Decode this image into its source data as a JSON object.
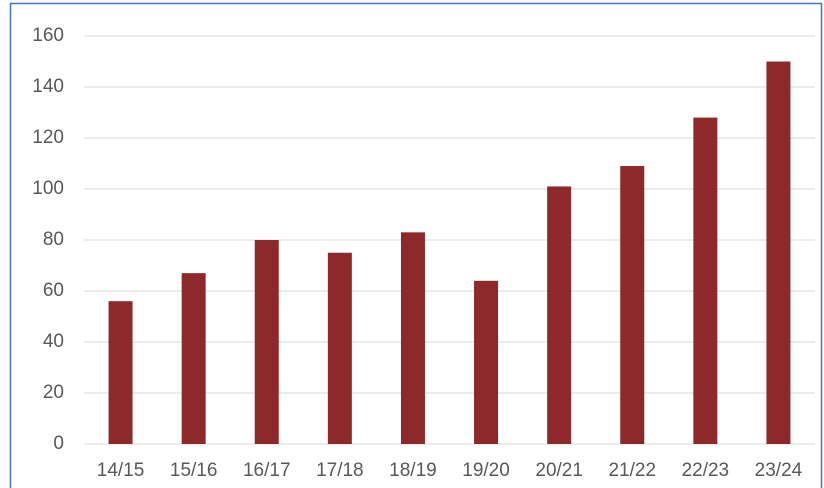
{
  "chart_data": {
    "type": "bar",
    "categories": [
      "14/15",
      "15/16",
      "16/17",
      "17/18",
      "18/19",
      "19/20",
      "20/21",
      "21/22",
      "22/23",
      "23/24"
    ],
    "values": [
      56,
      67,
      80,
      75,
      83,
      64,
      101,
      109,
      128,
      150
    ],
    "color": "#8e292b",
    "ylim": [
      0,
      160
    ],
    "yticks": [
      0,
      20,
      40,
      60,
      80,
      100,
      120,
      140,
      160
    ],
    "grid": true
  }
}
